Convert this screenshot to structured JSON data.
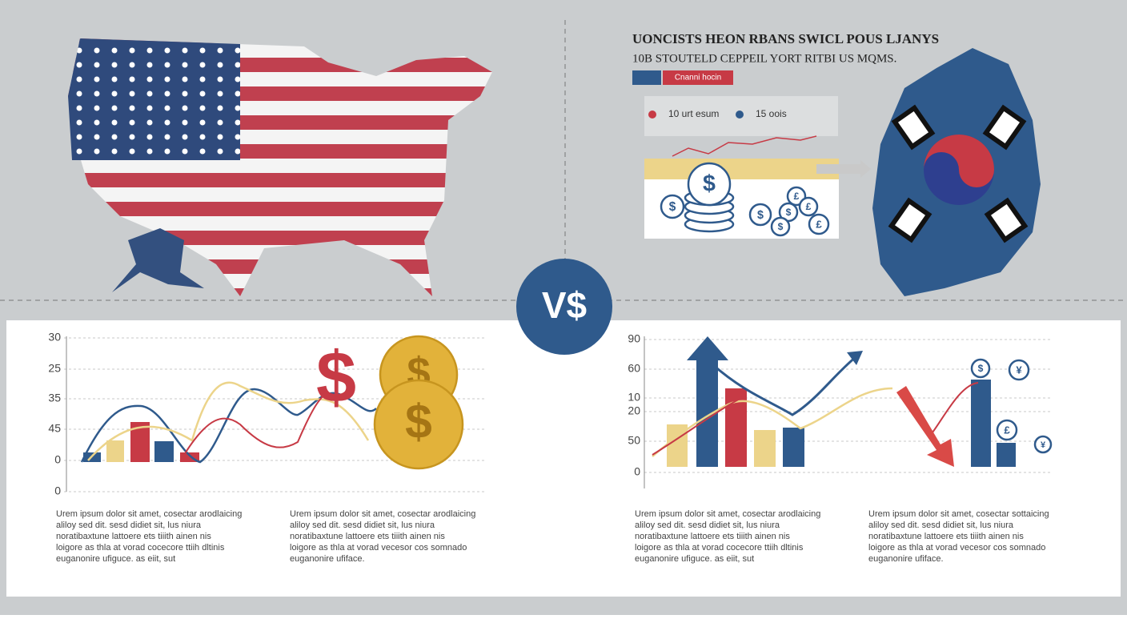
{
  "header": {
    "title": "UONCISTS HEON RBANS SWICL POUS LJANYS",
    "subtitle": "10B STOUTELD CEPPEIL YORT RITBI US MQMS.",
    "tag": "Cnanni hocin"
  },
  "legend": [
    "10 urt esum",
    "15 oois"
  ],
  "vs": "V$",
  "coins": {
    "top": [
      "$",
      "$",
      "£",
      "$",
      "$",
      "£",
      "$",
      "£"
    ],
    "left": [
      "$",
      "$",
      "$"
    ],
    "right": [
      "$",
      "¥",
      "£",
      "¥"
    ]
  },
  "left_chart": {
    "y_labels": [
      "30",
      "25",
      "35",
      "45",
      "0",
      "0"
    ]
  },
  "right_chart": {
    "y_labels": [
      "90",
      "60",
      "10",
      "20",
      "50",
      "0"
    ]
  },
  "paragraphs": [
    [
      "Urem ipsum dolor sit amet, cosectar arodlaicing",
      "aliloy sed dit. sesd didiet sit, lus niura",
      "noratibaxtune lattoere ets tiiith ainen nis",
      "loigore as thla at vorad cocecore ttiih dltinis",
      "euganonire ufiguce.                        as eiit, sut"
    ],
    [
      "Urem ipsum dolor sit amet, cosectar arodlaicing",
      "aliloy sed dit. sesd didiet sit, lus niura",
      "noratibaxtune lattoere ets tiiith ainen nis",
      "loigore as thla at vorad vecesor cos somnado",
      "euganonire ufiface."
    ],
    [
      "Urem ipsum dolor sit amet, cosectar arodlaicing",
      "aliloy sed dit. sesd didiet sit, lus niura",
      "noratibaxtune lattoere ets tiiith ainen nis",
      "loigore as thla at vorad cocecore ttiih dltinis",
      "euganonire ufiguce.                        as eiit, sut"
    ],
    [
      "Urem ipsum dolor sit amet, cosectar sottaicing",
      "aliloy sed dit. sesd didiet sit, lus niura",
      "noratibaxtune lattoere ets tiiith ainen nis",
      "loigore as thla at vorad vecesor cos somnado",
      "euganonire ufiface."
    ]
  ]
}
